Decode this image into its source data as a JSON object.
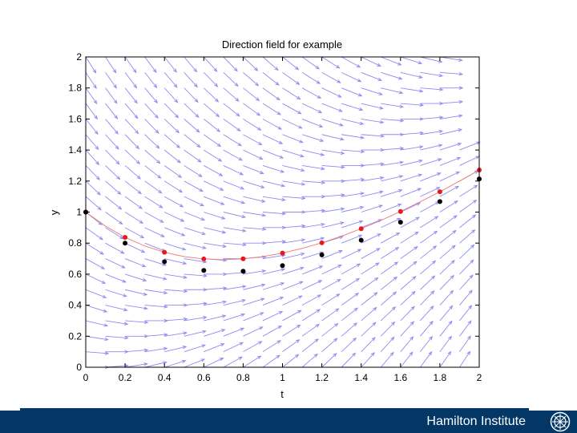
{
  "chart_data": {
    "type": "scatter",
    "title": "Direction field for example",
    "xlabel": "t",
    "ylabel": "y",
    "xlim": [
      0,
      2
    ],
    "ylim": [
      0,
      2
    ],
    "xticks": [
      "0",
      "0.2",
      "0.4",
      "0.6",
      "0.8",
      "1",
      "1.2",
      "1.4",
      "1.6",
      "1.8",
      "2"
    ],
    "yticks": [
      "0",
      "0.2",
      "0.4",
      "0.6",
      "0.8",
      "1",
      "1.2",
      "1.4",
      "1.6",
      "1.8",
      "2"
    ],
    "grid": false,
    "direction_field": {
      "t_step": 0.1,
      "y_step": 0.1,
      "color": "#8c8cf0"
    },
    "series": [
      {
        "type": "line",
        "color": "#f08080",
        "x": [
          0,
          0.1,
          0.2,
          0.3,
          0.4,
          0.5,
          0.6,
          0.7,
          0.8,
          0.9,
          1,
          1.1,
          1.2,
          1.3,
          1.4,
          1.5,
          1.6,
          1.7,
          1.8,
          1.9,
          2
        ],
        "values": [
          1,
          0.91,
          0.837,
          0.782,
          0.741,
          0.713,
          0.698,
          0.693,
          0.699,
          0.713,
          0.736,
          0.766,
          0.802,
          0.845,
          0.893,
          0.946,
          1.004,
          1.066,
          1.131,
          1.2,
          1.271
        ]
      },
      {
        "type": "scatter",
        "color": "#e41a1c",
        "x": [
          0,
          0.2,
          0.4,
          0.6,
          0.8,
          1,
          1.2,
          1.4,
          1.6,
          1.8,
          2
        ],
        "values": [
          1,
          0.837,
          0.741,
          0.698,
          0.699,
          0.736,
          0.802,
          0.893,
          1.004,
          1.131,
          1.271
        ]
      },
      {
        "type": "scatter",
        "color": "#000000",
        "x": [
          0,
          0.2,
          0.4,
          0.6,
          0.8,
          1,
          1.2,
          1.4,
          1.6,
          1.8,
          2
        ],
        "values": [
          1,
          0.8,
          0.68,
          0.624,
          0.619,
          0.655,
          0.724,
          0.819,
          0.935,
          1.068,
          1.214
        ]
      }
    ]
  },
  "footer": {
    "text": "Hamilton Institute",
    "color": "#033766"
  }
}
